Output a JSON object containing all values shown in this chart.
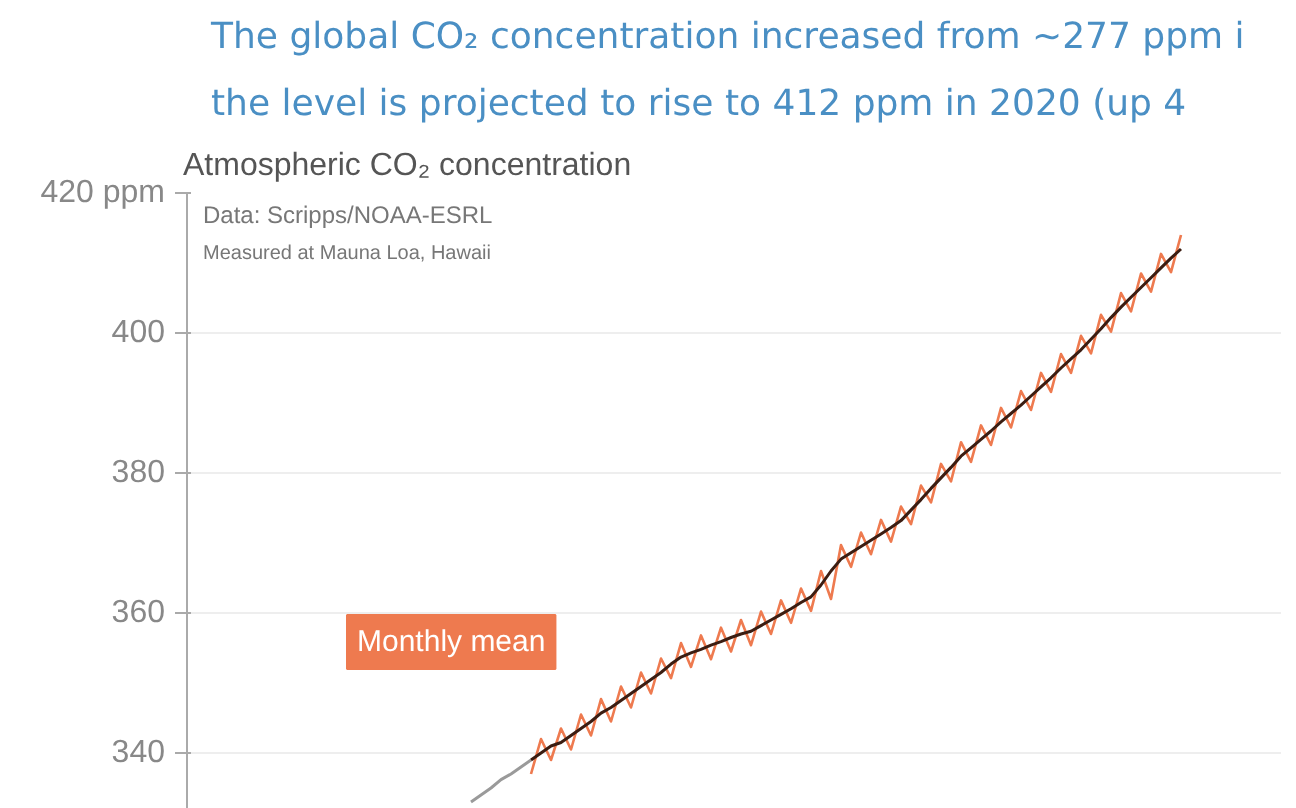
{
  "chart_data": {
    "type": "line",
    "title": "The global CO₂ concentration increased from ~277 ppm i\nthe level is projected to rise to 412 ppm in 2020 (up 4",
    "subtitle": "Atmospheric CO₂ concentration",
    "annotations": [
      "Data: Scripps/NOAA-ESRL",
      "Measured at Mauna Loa, Hawaii"
    ],
    "categories": [
      null,
      null,
      null,
      null,
      null,
      null,
      null,
      null,
      null,
      null,
      null,
      null,
      null,
      null,
      null,
      null,
      null,
      null,
      null,
      null,
      null,
      null,
      null,
      null,
      null,
      null,
      null,
      null,
      null,
      null,
      null,
      null,
      null,
      null,
      null,
      null,
      null,
      null,
      null,
      null,
      null,
      null,
      null,
      null,
      null,
      null,
      null,
      null,
      null,
      null,
      null,
      null,
      null,
      null,
      null,
      null,
      null,
      null,
      null,
      null,
      null,
      null,
      null,
      null,
      null,
      null,
      null,
      null,
      null,
      null,
      null,
      null,
      null,
      null,
      null,
      null,
      null,
      null,
      null,
      null,
      null,
      null,
      null,
      null,
      null,
      null,
      null,
      null,
      null,
      null,
      null,
      null,
      null,
      null,
      null,
      null,
      null,
      null,
      null,
      null,
      null,
      null,
      null,
      null,
      null,
      null
    ],
    "series": [
      {
        "color": "#9a9a9a",
        "values": [
          null,
          null,
          null,
          null,
          null,
          null,
          null,
          null,
          null,
          null,
          null,
          null,
          null,
          null,
          null,
          null,
          null,
          null,
          null,
          null,
          null,
          null,
          null,
          null,
          null,
          null,
          null,
          333,
          334,
          335,
          336.2,
          337,
          338,
          339,
          null,
          null,
          null,
          null,
          null,
          null,
          null,
          null,
          null,
          null,
          null,
          null,
          null,
          null,
          null,
          null,
          null,
          null,
          null,
          null,
          null,
          null,
          null,
          null,
          null,
          null,
          null,
          null,
          null,
          null,
          null,
          null,
          null,
          null,
          null,
          null,
          null,
          null,
          null,
          null,
          null,
          null,
          null,
          null,
          null,
          null,
          null,
          null,
          null,
          null,
          null,
          null,
          null,
          null,
          null,
          null,
          null,
          null,
          null,
          null,
          null,
          null,
          null,
          null,
          null,
          null,
          null,
          null,
          null,
          null,
          null,
          null
        ]
      },
      {
        "name": "Monthly mean",
        "color": "#ee7a4f",
        "values": [
          null,
          null,
          null,
          null,
          null,
          null,
          null,
          null,
          null,
          null,
          null,
          null,
          null,
          null,
          null,
          null,
          null,
          null,
          null,
          null,
          null,
          null,
          null,
          null,
          null,
          null,
          null,
          null,
          null,
          null,
          null,
          null,
          null,
          337,
          342,
          339,
          343.5,
          340.5,
          345.5,
          342.5,
          347.7,
          344.5,
          349.5,
          346.5,
          351.5,
          348.5,
          353.5,
          350.7,
          355.7,
          352.3,
          356.8,
          353.4,
          357.9,
          354.5,
          359,
          355.4,
          360.2,
          357,
          361.8,
          358.6,
          363.5,
          360.3,
          366,
          362,
          369.7,
          366.6,
          371.5,
          368.4,
          373.3,
          370.2,
          375.2,
          372.7,
          378.2,
          375.8,
          381.3,
          378.8,
          384.4,
          381.6,
          386.8,
          384,
          389.3,
          386.5,
          391.7,
          389,
          394.3,
          391.6,
          397,
          394.3,
          399.6,
          397.1,
          402.6,
          400.2,
          405.7,
          403.1,
          408.5,
          405.9,
          411.3,
          408.7,
          414,
          null,
          null,
          null,
          null,
          null,
          null,
          null
        ]
      },
      {
        "color": "#3b1d12",
        "values": [
          null,
          null,
          null,
          null,
          null,
          null,
          null,
          null,
          null,
          null,
          null,
          null,
          null,
          null,
          null,
          null,
          null,
          null,
          null,
          null,
          null,
          null,
          null,
          null,
          null,
          null,
          null,
          null,
          null,
          null,
          null,
          null,
          null,
          339,
          340,
          341,
          341.5,
          342.5,
          343.5,
          344.5,
          345.7,
          346.5,
          347.5,
          348.5,
          349.5,
          350.5,
          351.5,
          352.7,
          353.7,
          354.3,
          354.8,
          355.4,
          355.9,
          356.5,
          357,
          357.4,
          358.2,
          359,
          359.8,
          360.6,
          361.5,
          362.3,
          364,
          366,
          367.7,
          368.6,
          369.5,
          370.4,
          371.3,
          372.2,
          373.2,
          374.7,
          376.2,
          377.8,
          379.3,
          380.8,
          382.4,
          383.6,
          384.8,
          386,
          387.3,
          388.5,
          389.7,
          391,
          392.3,
          393.6,
          395,
          396.3,
          397.6,
          399.1,
          400.6,
          402.2,
          403.7,
          405.1,
          406.5,
          407.9,
          409.3,
          410.7,
          412,
          null,
          null,
          null,
          null,
          null,
          null,
          null
        ]
      }
    ],
    "ylim": [
      332,
      420
    ],
    "yticks": [
      {
        "value": 420,
        "label": "420 ppm"
      },
      340,
      360,
      380,
      400
    ],
    "grid": "y",
    "marker": "none",
    "line_style": "solid",
    "tick_labels": "y"
  }
}
